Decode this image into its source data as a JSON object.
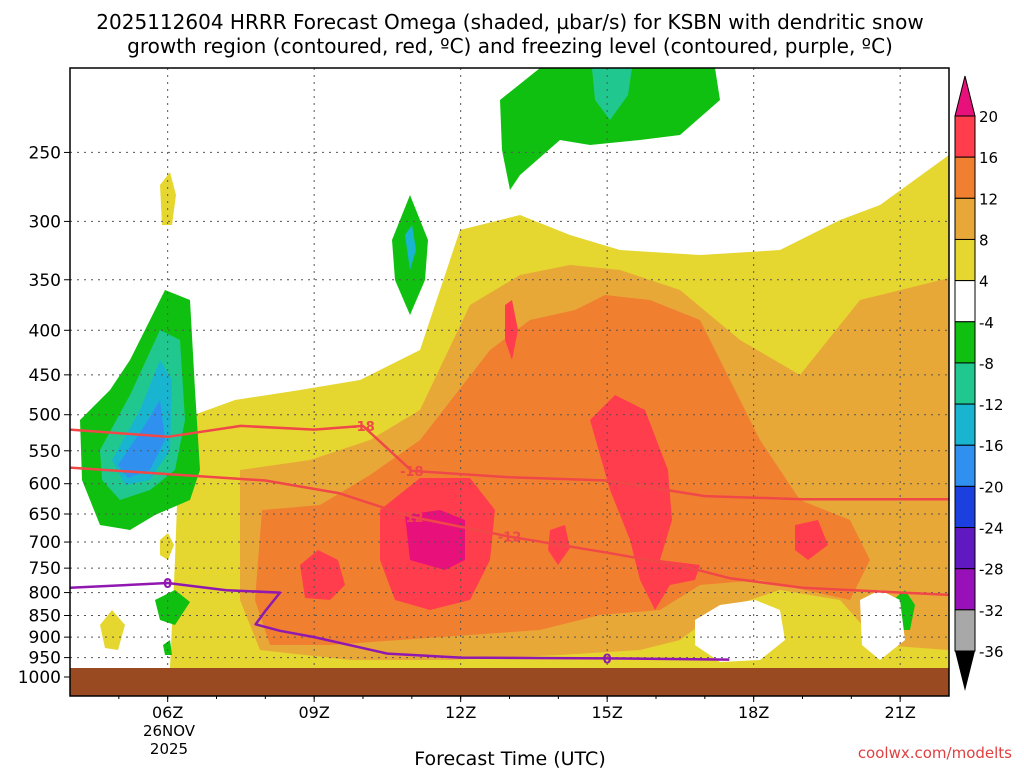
{
  "chart_data": {
    "type": "heatmap",
    "title_line1": "2025112604 HRRR Forecast Omega (shaded, µbar/s) for KSBN with dendritic snow",
    "title_line2": "growth region (contoured, red, ºC) and freezing level (contoured, purple, ºC)",
    "xlabel": "Forecast Time (UTC)",
    "ylabel": "",
    "y_log_scale": true,
    "y_reversed": true,
    "ylim": [
      1000,
      200
    ],
    "y_ticks": [
      250,
      300,
      350,
      400,
      450,
      500,
      550,
      600,
      650,
      700,
      750,
      800,
      850,
      900,
      950,
      1000
    ],
    "x_range_hours": [
      4,
      22
    ],
    "x_ticks": [
      {
        "hour": 6,
        "label": "06Z"
      },
      {
        "hour": 9,
        "label": "09Z"
      },
      {
        "hour": 12,
        "label": "12Z"
      },
      {
        "hour": 15,
        "label": "15Z"
      },
      {
        "hour": 18,
        "label": "18Z"
      },
      {
        "hour": 21,
        "label": "21Z"
      }
    ],
    "date_label_line1": "26NOV",
    "date_label_line2": "2025",
    "grid": true,
    "colorbar": {
      "labels": [
        "20",
        "16",
        "12",
        "8",
        "4",
        "-4",
        "-8",
        "-12",
        "-16",
        "-20",
        "-24",
        "-28",
        "-32",
        "-36"
      ],
      "colors": [
        "#ff3d4d",
        "#f08030",
        "#e8a838",
        "#e6d630",
        "#ffffff",
        "#10c010",
        "#20c890",
        "#18b4d0",
        "#3090f0",
        "#1c40e0",
        "#6018c0",
        "#9810b8",
        "#a8a8a8"
      ],
      "top_arrow_color": "#e8107a",
      "bottom_arrow_color": "#000000",
      "placement": "right"
    },
    "contours": [
      {
        "kind": "dendritic",
        "label": "-18",
        "color": "#f04848",
        "points": [
          [
            4,
            520
          ],
          [
            6,
            530
          ],
          [
            7.5,
            515
          ],
          [
            9,
            520
          ],
          [
            10,
            515
          ],
          [
            11,
            580
          ],
          [
            13,
            590
          ],
          [
            15,
            595
          ],
          [
            17,
            620
          ],
          [
            19,
            625
          ],
          [
            22,
            625
          ]
        ]
      },
      {
        "kind": "dendritic",
        "label": "-12",
        "color": "#f04848",
        "points": [
          [
            4,
            575
          ],
          [
            6,
            585
          ],
          [
            8,
            595
          ],
          [
            9.5,
            615
          ],
          [
            11,
            655
          ],
          [
            13,
            690
          ],
          [
            15,
            720
          ],
          [
            16.5,
            745
          ],
          [
            17.5,
            770
          ],
          [
            19,
            790
          ],
          [
            22,
            805
          ]
        ]
      },
      {
        "kind": "freezing",
        "label": "0",
        "color": "#9018b0",
        "points": [
          [
            4,
            790
          ],
          [
            6,
            780
          ],
          [
            7.2,
            795
          ],
          [
            8.3,
            800
          ],
          [
            8.0,
            840
          ],
          [
            7.8,
            870
          ],
          [
            8.3,
            885
          ],
          [
            9,
            900
          ],
          [
            10.5,
            940
          ],
          [
            12,
            950
          ],
          [
            15,
            952
          ],
          [
            17.5,
            955
          ]
        ]
      }
    ]
  },
  "credit": "coolwx.com/modelts"
}
